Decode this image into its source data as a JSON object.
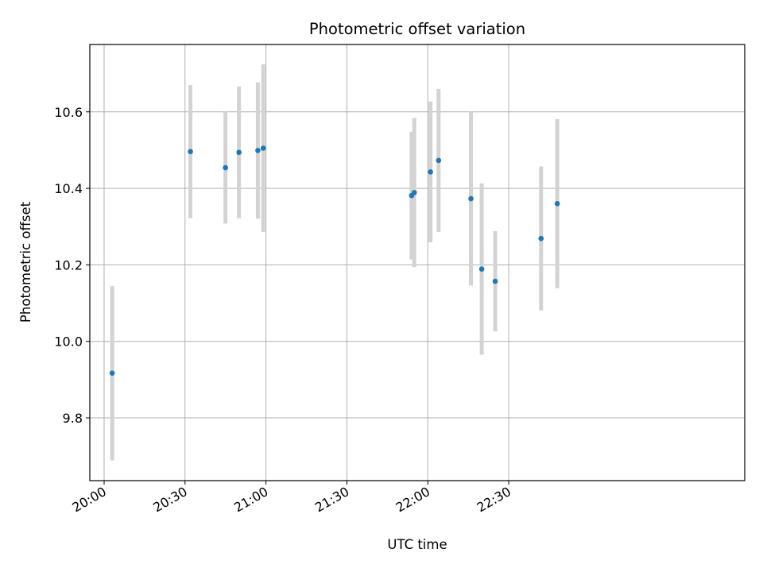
{
  "chart_data": {
    "type": "scatter",
    "title": "Photometric offset variation",
    "xlabel": "UTC time",
    "ylabel": "Photometric offset",
    "grid": true,
    "x_tick_labels": [
      "20:00",
      "20:30",
      "21:00",
      "21:30",
      "22:00",
      "22:30"
    ],
    "x_ticks": [
      "20:00",
      "20:30",
      "21:00",
      "21:30",
      "22:00",
      "22:30"
    ],
    "xlim": [
      "19:54.7",
      "23:57.5"
    ],
    "y_ticks": [
      9.8,
      10.0,
      10.2,
      10.4,
      10.6
    ],
    "y_tick_labels": [
      "9.8",
      "10.0",
      "10.2",
      "10.4",
      "10.6"
    ],
    "ylim": [
      9.636,
      10.776
    ],
    "point_color": "#1f77b4",
    "errorbar_color": "#d3d3d3",
    "points": [
      {
        "x": "20:03",
        "y": 9.917,
        "err": 0.228
      },
      {
        "x": "20:32",
        "y": 10.496,
        "err": 0.174
      },
      {
        "x": "20:45",
        "y": 10.454,
        "err": 0.146
      },
      {
        "x": "20:50",
        "y": 10.494,
        "err": 0.172
      },
      {
        "x": "20:57",
        "y": 10.499,
        "err": 0.178
      },
      {
        "x": "20:59",
        "y": 10.505,
        "err": 0.219
      },
      {
        "x": "21:54",
        "y": 10.381,
        "err": 0.167
      },
      {
        "x": "21:55",
        "y": 10.389,
        "err": 0.195
      },
      {
        "x": "22:01",
        "y": 10.443,
        "err": 0.184
      },
      {
        "x": "22:04",
        "y": 10.473,
        "err": 0.187
      },
      {
        "x": "22:16",
        "y": 10.373,
        "err": 0.227
      },
      {
        "x": "22:20",
        "y": 10.189,
        "err": 0.224
      },
      {
        "x": "22:25",
        "y": 10.157,
        "err": 0.131
      },
      {
        "x": "22:42",
        "y": 10.269,
        "err": 0.188
      },
      {
        "x": "22:48",
        "y": 10.36,
        "err": 0.221
      }
    ]
  }
}
